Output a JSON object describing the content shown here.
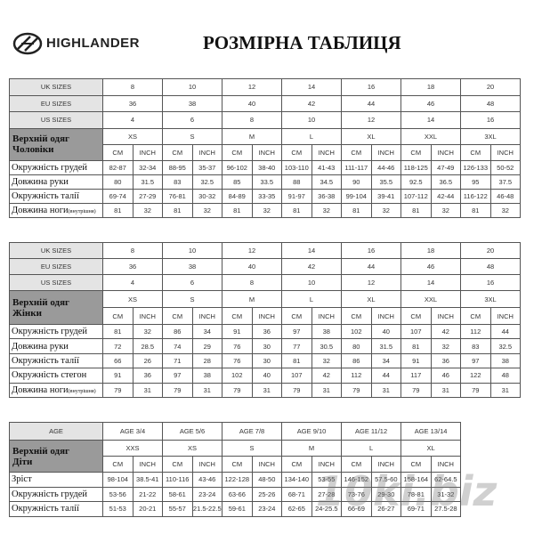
{
  "header": {
    "brand": "HIGHLANDER",
    "title": "РОЗМІРНА ТАБЛИЦЯ"
  },
  "tables": [
    {
      "size_rows": [
        {
          "label": "UK SIZES",
          "values": [
            "8",
            "10",
            "12",
            "14",
            "16",
            "18",
            "20"
          ]
        },
        {
          "label": "EU SIZES",
          "values": [
            "36",
            "38",
            "40",
            "42",
            "44",
            "46",
            "48"
          ]
        },
        {
          "label": "US SIZES",
          "values": [
            "4",
            "6",
            "8",
            "10",
            "12",
            "14",
            "16"
          ]
        }
      ],
      "group_label": [
        "Верхній одяг",
        "Чоловіки"
      ],
      "sizes": [
        "XS",
        "S",
        "M",
        "L",
        "XL",
        "XXL",
        "3XL"
      ],
      "unit_labels": [
        "CM",
        "INCH"
      ],
      "rows": [
        {
          "label": "Окружність грудей",
          "values": [
            [
              "82-87",
              "32-34"
            ],
            [
              "88-95",
              "35-37"
            ],
            [
              "96-102",
              "38-40"
            ],
            [
              "103-110",
              "41-43"
            ],
            [
              "111-117",
              "44-46"
            ],
            [
              "118-125",
              "47-49"
            ],
            [
              "126-133",
              "50-52"
            ]
          ]
        },
        {
          "label": "Довжина руки",
          "values": [
            [
              "80",
              "31.5"
            ],
            [
              "83",
              "32.5"
            ],
            [
              "85",
              "33.5"
            ],
            [
              "88",
              "34.5"
            ],
            [
              "90",
              "35.5"
            ],
            [
              "92.5",
              "36.5"
            ],
            [
              "95",
              "37.5"
            ]
          ]
        },
        {
          "label": "Окружність талії",
          "values": [
            [
              "69-74",
              "27-29"
            ],
            [
              "76-81",
              "30-32"
            ],
            [
              "84-89",
              "33-35"
            ],
            [
              "91-97",
              "36-38"
            ],
            [
              "99-104",
              "39-41"
            ],
            [
              "107-112",
              "42-44"
            ],
            [
              "116-122",
              "46-48"
            ]
          ]
        },
        {
          "label": "Довжина ноги",
          "note": "(внутрішня)",
          "values": [
            [
              "81",
              "32"
            ],
            [
              "81",
              "32"
            ],
            [
              "81",
              "32"
            ],
            [
              "81",
              "32"
            ],
            [
              "81",
              "32"
            ],
            [
              "81",
              "32"
            ],
            [
              "81",
              "32"
            ]
          ]
        }
      ]
    },
    {
      "size_rows": [
        {
          "label": "UK SIZES",
          "values": [
            "8",
            "10",
            "12",
            "14",
            "16",
            "18",
            "20"
          ]
        },
        {
          "label": "EU SIZES",
          "values": [
            "36",
            "38",
            "40",
            "42",
            "44",
            "46",
            "48"
          ]
        },
        {
          "label": "US SIZES",
          "values": [
            "4",
            "6",
            "8",
            "10",
            "12",
            "14",
            "16"
          ]
        }
      ],
      "group_label": [
        "Верхній одяг",
        "Жінки"
      ],
      "sizes": [
        "XS",
        "S",
        "M",
        "L",
        "XL",
        "XXL",
        "3XL"
      ],
      "unit_labels": [
        "CM",
        "INCH"
      ],
      "rows": [
        {
          "label": "Окружність грудей",
          "values": [
            [
              "81",
              "32"
            ],
            [
              "86",
              "34"
            ],
            [
              "91",
              "36"
            ],
            [
              "97",
              "38"
            ],
            [
              "102",
              "40"
            ],
            [
              "107",
              "42"
            ],
            [
              "112",
              "44"
            ]
          ]
        },
        {
          "label": "Довжина руки",
          "values": [
            [
              "72",
              "28.5"
            ],
            [
              "74",
              "29"
            ],
            [
              "76",
              "30"
            ],
            [
              "77",
              "30.5"
            ],
            [
              "80",
              "31.5"
            ],
            [
              "81",
              "32"
            ],
            [
              "83",
              "32.5"
            ]
          ]
        },
        {
          "label": "Окружність талії",
          "values": [
            [
              "66",
              "26"
            ],
            [
              "71",
              "28"
            ],
            [
              "76",
              "30"
            ],
            [
              "81",
              "32"
            ],
            [
              "86",
              "34"
            ],
            [
              "91",
              "36"
            ],
            [
              "97",
              "38"
            ]
          ]
        },
        {
          "label": "Окружність стегон",
          "values": [
            [
              "91",
              "36"
            ],
            [
              "97",
              "38"
            ],
            [
              "102",
              "40"
            ],
            [
              "107",
              "42"
            ],
            [
              "112",
              "44"
            ],
            [
              "117",
              "46"
            ],
            [
              "122",
              "48"
            ]
          ]
        },
        {
          "label": "Довжина ноги",
          "note": "(внутрішня)",
          "values": [
            [
              "79",
              "31"
            ],
            [
              "79",
              "31"
            ],
            [
              "79",
              "31"
            ],
            [
              "79",
              "31"
            ],
            [
              "79",
              "31"
            ],
            [
              "79",
              "31"
            ],
            [
              "79",
              "31"
            ]
          ]
        }
      ]
    },
    {
      "size_rows": [
        {
          "label": "AGE",
          "values": [
            "AGE 3/4",
            "AGE 5/6",
            "AGE 7/8",
            "AGE 9/10",
            "AGE 11/12",
            "AGE 13/14"
          ]
        }
      ],
      "group_label": [
        "Верхній одяг",
        "Діти"
      ],
      "sizes": [
        "XXS",
        "XS",
        "S",
        "M",
        "L",
        "XL"
      ],
      "unit_labels": [
        "CM",
        "INCH"
      ],
      "rows": [
        {
          "label": "Зріст",
          "values": [
            [
              "98-104",
              "38.5-41"
            ],
            [
              "110-116",
              "43-46"
            ],
            [
              "122-128",
              "48-50"
            ],
            [
              "134-140",
              "53-55"
            ],
            [
              "146-152",
              "57.5-60"
            ],
            [
              "158-164",
              "62-64.5"
            ]
          ]
        },
        {
          "label": "Окружність грудей",
          "values": [
            [
              "53-56",
              "21-22"
            ],
            [
              "58-61",
              "23-24"
            ],
            [
              "63-66",
              "25-26"
            ],
            [
              "68-71",
              "27-28"
            ],
            [
              "73-76",
              "29-30"
            ],
            [
              "78-81",
              "31-32"
            ]
          ]
        },
        {
          "label": "Окружність талії",
          "values": [
            [
              "51-53",
              "20-21"
            ],
            [
              "55-57",
              "21.5-22.5"
            ],
            [
              "59-61",
              "23-24"
            ],
            [
              "62-65",
              "24-25.5"
            ],
            [
              "66-69",
              "26-27"
            ],
            [
              "69-71",
              "27.5-28"
            ]
          ]
        }
      ]
    }
  ],
  "watermark": "10ki.biz"
}
